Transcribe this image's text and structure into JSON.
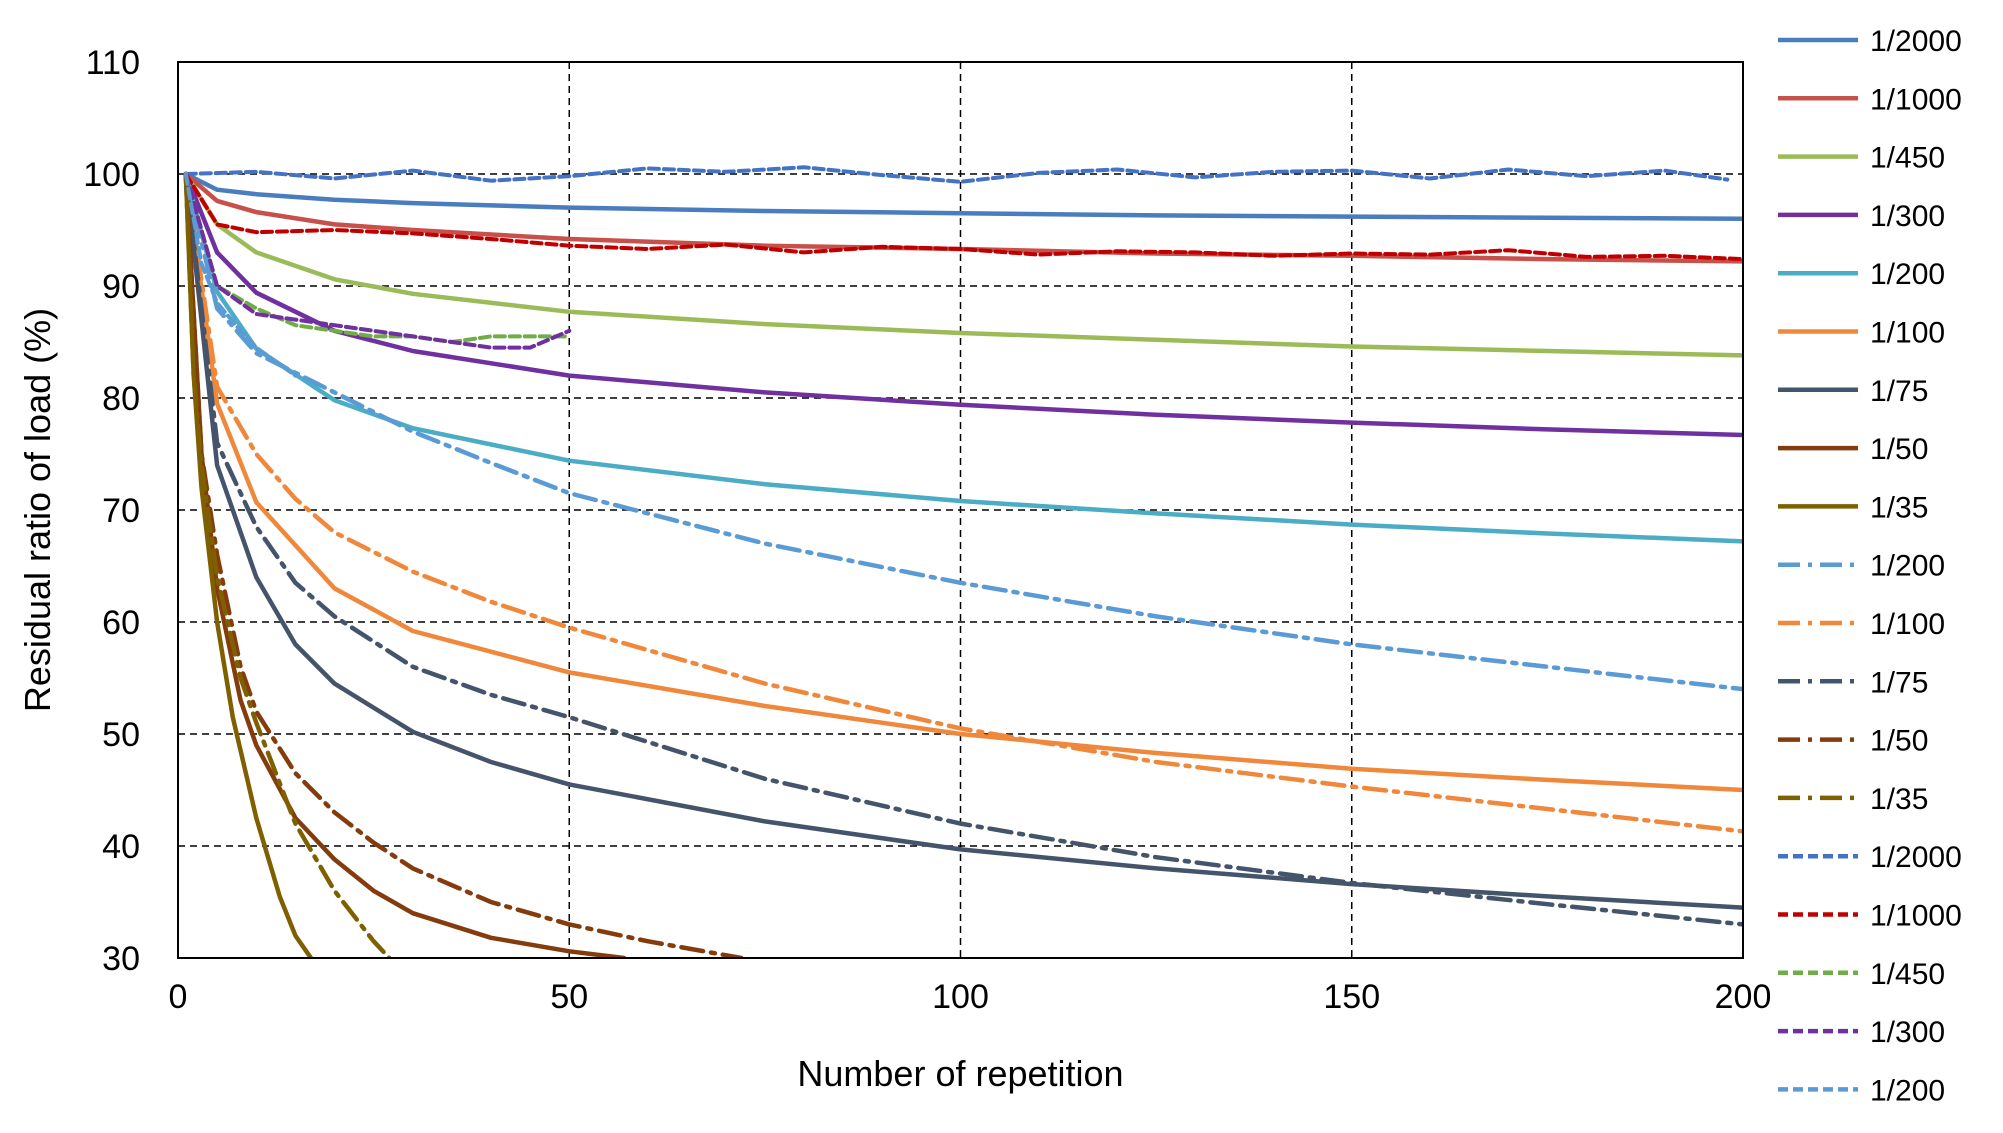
{
  "chart_data": {
    "type": "line",
    "title": "",
    "xlabel": "Number of repetition",
    "ylabel": "Residual ratio of load (%)",
    "xlim": [
      0,
      200
    ],
    "ylim": [
      30,
      110
    ],
    "xticks": [
      0,
      50,
      100,
      150,
      200
    ],
    "yticks": [
      30,
      40,
      50,
      60,
      70,
      80,
      90,
      100,
      110
    ],
    "x_tick_labels": [
      "0",
      "50",
      "100",
      "150",
      "200"
    ],
    "y_tick_labels": [
      "30",
      "40",
      "50",
      "60",
      "70",
      "80",
      "90",
      "100",
      "110"
    ],
    "grid": "dashed, major",
    "legend_position": "right",
    "series": [
      {
        "name": "1/2000",
        "color": "#4a7dbd",
        "dash": "solid",
        "x": [
          1,
          5,
          10,
          20,
          30,
          50,
          75,
          100,
          125,
          150,
          175,
          200
        ],
        "y": [
          100,
          98.6,
          98.2,
          97.7,
          97.4,
          97.0,
          96.7,
          96.5,
          96.3,
          96.2,
          96.1,
          96.0
        ]
      },
      {
        "name": "1/1000",
        "color": "#c8504b",
        "dash": "solid",
        "x": [
          1,
          5,
          10,
          20,
          30,
          50,
          75,
          100,
          125,
          150,
          175,
          200
        ],
        "y": [
          100,
          97.6,
          96.6,
          95.5,
          95.0,
          94.2,
          93.6,
          93.3,
          92.9,
          92.7,
          92.4,
          92.2
        ]
      },
      {
        "name": "1/450",
        "color": "#9bbb59",
        "dash": "solid",
        "x": [
          1,
          5,
          10,
          20,
          30,
          50,
          75,
          100,
          125,
          150,
          175,
          200
        ],
        "y": [
          100,
          95.5,
          93.0,
          90.6,
          89.3,
          87.7,
          86.6,
          85.8,
          85.2,
          84.6,
          84.2,
          83.8
        ]
      },
      {
        "name": "1/300",
        "color": "#7030a0",
        "dash": "solid",
        "x": [
          1,
          5,
          10,
          20,
          30,
          50,
          75,
          100,
          125,
          150,
          175,
          200
        ],
        "y": [
          100,
          93.0,
          89.4,
          86.0,
          84.2,
          82.0,
          80.5,
          79.4,
          78.5,
          77.8,
          77.2,
          76.7
        ]
      },
      {
        "name": "1/200",
        "color": "#4bacc6",
        "dash": "solid",
        "x": [
          1,
          5,
          10,
          20,
          30,
          50,
          75,
          100,
          125,
          150,
          175,
          200
        ],
        "y": [
          100,
          89.5,
          84.4,
          79.8,
          77.3,
          74.4,
          72.3,
          70.8,
          69.7,
          68.7,
          67.9,
          67.2
        ]
      },
      {
        "name": "1/100",
        "color": "#f0883c",
        "dash": "solid",
        "x": [
          1,
          5,
          10,
          20,
          30,
          50,
          75,
          100,
          125,
          150,
          175,
          200
        ],
        "y": [
          100,
          79.5,
          70.7,
          63.0,
          59.2,
          55.5,
          52.5,
          50.0,
          48.3,
          46.9,
          45.9,
          45.0
        ]
      },
      {
        "name": "1/75",
        "color": "#44546a",
        "dash": "solid",
        "x": [
          1,
          5,
          10,
          15,
          20,
          30,
          40,
          50,
          75,
          100,
          125,
          150,
          175,
          200
        ],
        "y": [
          100,
          74.0,
          64.0,
          58.0,
          54.5,
          50.2,
          47.5,
          45.5,
          42.2,
          39.7,
          38.0,
          36.6,
          35.5,
          34.5
        ]
      },
      {
        "name": "1/50",
        "color": "#843c0c",
        "dash": "solid",
        "x": [
          1,
          3,
          5,
          8,
          10,
          15,
          20,
          25,
          30,
          40,
          50,
          57
        ],
        "y": [
          100,
          75.0,
          63.0,
          53.0,
          49.0,
          42.5,
          38.8,
          36.0,
          34.0,
          31.8,
          30.6,
          30.0
        ]
      },
      {
        "name": "1/35",
        "color": "#7f6000",
        "dash": "solid",
        "x": [
          1,
          2,
          3,
          5,
          7,
          10,
          13,
          15,
          17
        ],
        "y": [
          100,
          82.0,
          72.0,
          60.0,
          51.5,
          42.5,
          35.5,
          32.0,
          30.0
        ]
      },
      {
        "name": "1/200",
        "color": "#5b9bd5",
        "dash": "dashdot",
        "x": [
          1,
          5,
          10,
          20,
          30,
          40,
          50,
          75,
          100,
          125,
          150,
          175,
          200
        ],
        "y": [
          100,
          88.0,
          84.0,
          80.5,
          77.0,
          74.2,
          71.5,
          67.0,
          63.5,
          60.5,
          58.0,
          56.0,
          54.0
        ]
      },
      {
        "name": "1/100",
        "color": "#f0883c",
        "dash": "dashdot",
        "x": [
          1,
          5,
          10,
          15,
          20,
          30,
          40,
          50,
          75,
          100,
          125,
          150,
          175,
          200
        ],
        "y": [
          100,
          81.0,
          75.0,
          71.0,
          68.0,
          64.5,
          61.8,
          59.5,
          54.5,
          50.5,
          47.5,
          45.3,
          43.3,
          41.3
        ]
      },
      {
        "name": "1/75",
        "color": "#44546a",
        "dash": "dashdot",
        "x": [
          1,
          5,
          10,
          15,
          20,
          30,
          40,
          50,
          75,
          100,
          125,
          150,
          175,
          200
        ],
        "y": [
          100,
          76.0,
          68.5,
          63.5,
          60.5,
          56.0,
          53.5,
          51.5,
          46.0,
          42.0,
          39.0,
          36.7,
          34.8,
          33.0
        ]
      },
      {
        "name": "1/50",
        "color": "#843c0c",
        "dash": "dashdot",
        "x": [
          1,
          3,
          5,
          8,
          10,
          15,
          20,
          25,
          30,
          40,
          50,
          60,
          72
        ],
        "y": [
          100,
          75.0,
          66.0,
          56.0,
          52.0,
          46.5,
          43.0,
          40.3,
          38.0,
          35.0,
          33.0,
          31.5,
          30.0
        ]
      },
      {
        "name": "1/35",
        "color": "#7f6000",
        "dash": "dashdot",
        "x": [
          1,
          2,
          3,
          5,
          8,
          10,
          15,
          20,
          25,
          27
        ],
        "y": [
          100,
          82.0,
          74.0,
          64.0,
          55.0,
          51.0,
          42.0,
          36.0,
          31.5,
          30.0
        ]
      },
      {
        "name": "1/2000",
        "color": "#4472c4",
        "dash": "dashed",
        "x": [
          1,
          10,
          20,
          30,
          40,
          50,
          60,
          70,
          80,
          90,
          100,
          110,
          120,
          130,
          140,
          150,
          160,
          170,
          180,
          190,
          198
        ],
        "y": [
          100,
          100.2,
          99.6,
          100.3,
          99.4,
          99.8,
          100.5,
          100.2,
          100.6,
          99.9,
          99.3,
          100.1,
          100.4,
          99.7,
          100.2,
          100.3,
          99.6,
          100.4,
          99.8,
          100.3,
          99.5
        ]
      },
      {
        "name": "1/1000",
        "color": "#c00000",
        "dash": "dashed",
        "x": [
          1,
          5,
          10,
          20,
          30,
          40,
          50,
          60,
          70,
          80,
          90,
          100,
          110,
          120,
          130,
          140,
          150,
          160,
          170,
          180,
          190,
          200
        ],
        "y": [
          100,
          95.5,
          94.8,
          95.0,
          94.7,
          94.2,
          93.6,
          93.3,
          93.7,
          93.0,
          93.5,
          93.3,
          92.8,
          93.1,
          93.0,
          92.7,
          92.9,
          92.8,
          93.2,
          92.6,
          92.7,
          92.4
        ]
      },
      {
        "name": "1/450",
        "color": "#70ad47",
        "dash": "dashed",
        "x": [
          1,
          5,
          10,
          15,
          20,
          25,
          30,
          35,
          40,
          45,
          50
        ],
        "y": [
          100,
          90.0,
          88.0,
          86.5,
          86.0,
          85.5,
          85.5,
          85.0,
          85.5,
          85.5,
          85.5
        ]
      },
      {
        "name": "1/300",
        "color": "#7030a0",
        "dash": "dashed",
        "x": [
          1,
          5,
          10,
          15,
          20,
          25,
          30,
          35,
          40,
          45,
          50
        ],
        "y": [
          100,
          90.0,
          87.5,
          87.0,
          86.5,
          86.0,
          85.5,
          85.0,
          84.5,
          84.5,
          86.0
        ]
      },
      {
        "name": "1/200",
        "color": "#5b9bd5",
        "dash": "dashed",
        "x": [
          1,
          3,
          5,
          8,
          10,
          13,
          15
        ],
        "y": [
          100,
          92.0,
          88.5,
          86.0,
          84.5,
          83.0,
          82.0
        ]
      }
    ]
  }
}
